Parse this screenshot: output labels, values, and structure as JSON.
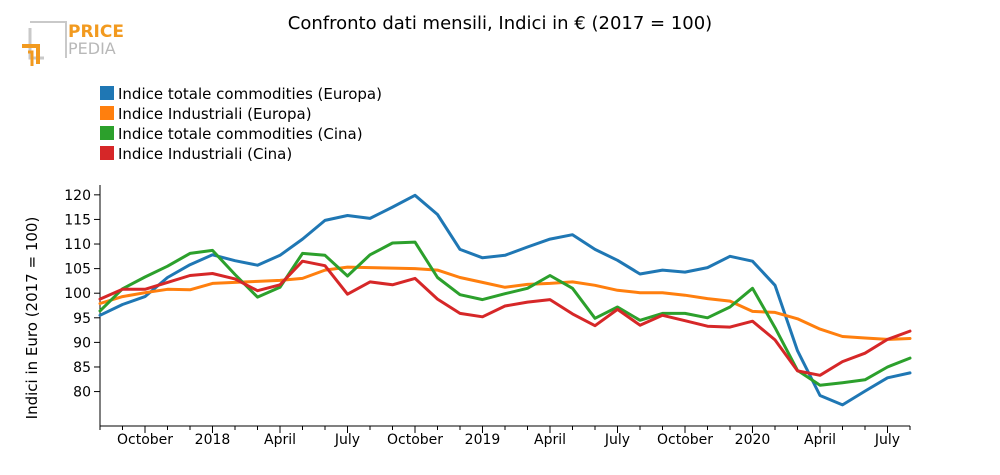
{
  "logo": {
    "line1": "PRICE",
    "line2": "PEDIA"
  },
  "chart_data": {
    "type": "line",
    "title": "Confronto dati mensili, Indici in € (2017 = 100)",
    "xlabel": "",
    "ylabel": "Indici in Euro (2017 = 100)",
    "ylim": [
      73,
      122
    ],
    "yticks": [
      80,
      85,
      90,
      95,
      100,
      105,
      110,
      115,
      120
    ],
    "x_months": [
      "2017-08",
      "2017-09",
      "2017-10",
      "2017-11",
      "2017-12",
      "2018-01",
      "2018-02",
      "2018-03",
      "2018-04",
      "2018-05",
      "2018-06",
      "2018-07",
      "2018-08",
      "2018-09",
      "2018-10",
      "2018-11",
      "2018-12",
      "2019-01",
      "2019-02",
      "2019-03",
      "2019-04",
      "2019-05",
      "2019-06",
      "2019-07",
      "2019-08",
      "2019-09",
      "2019-10",
      "2019-11",
      "2019-12",
      "2020-01",
      "2020-02",
      "2020-03",
      "2020-04",
      "2020-05",
      "2020-06",
      "2020-07",
      "2020-08"
    ],
    "xticks": [
      {
        "index": 2,
        "label": "October"
      },
      {
        "index": 5,
        "label": "2018"
      },
      {
        "index": 8,
        "label": "April"
      },
      {
        "index": 11,
        "label": "July"
      },
      {
        "index": 14,
        "label": "October"
      },
      {
        "index": 17,
        "label": "2019"
      },
      {
        "index": 20,
        "label": "April"
      },
      {
        "index": 23,
        "label": "July"
      },
      {
        "index": 26,
        "label": "October"
      },
      {
        "index": 29,
        "label": "2020"
      },
      {
        "index": 32,
        "label": "April"
      },
      {
        "index": 35,
        "label": "July"
      }
    ],
    "series": [
      {
        "name": "Indice totale commodities (Europa)",
        "color": "#1f77b4",
        "values": [
          95.5,
          97.7,
          99.3,
          103.2,
          105.8,
          107.8,
          106.6,
          105.7,
          107.7,
          111.0,
          114.8,
          115.8,
          115.2,
          117.5,
          119.9,
          116.0,
          108.9,
          107.2,
          107.7,
          109.4,
          111.0,
          111.9,
          108.9,
          106.7,
          103.9,
          104.7,
          104.3,
          105.2,
          107.5,
          106.5,
          101.6,
          88.3,
          79.2,
          77.3,
          80.1,
          82.8,
          83.8
        ]
      },
      {
        "name": "Indice Industriali (Europa)",
        "color": "#ff7f0e",
        "values": [
          97.9,
          99.3,
          100.1,
          100.8,
          100.7,
          102.0,
          102.2,
          102.4,
          102.6,
          103.0,
          104.7,
          105.3,
          105.2,
          105.1,
          105.0,
          104.7,
          103.2,
          102.2,
          101.2,
          101.8,
          102.0,
          102.3,
          101.6,
          100.6,
          100.1,
          100.1,
          99.6,
          98.9,
          98.4,
          96.3,
          96.1,
          94.8,
          92.7,
          91.2,
          90.9,
          90.6,
          90.8
        ]
      },
      {
        "name": "Indice totale commodities (Cina)",
        "color": "#2ca02c",
        "values": [
          96.4,
          100.9,
          103.3,
          105.5,
          108.1,
          108.7,
          103.8,
          99.2,
          101.2,
          108.1,
          107.7,
          103.5,
          107.8,
          110.2,
          110.4,
          103.2,
          99.7,
          98.7,
          99.9,
          101.0,
          103.6,
          101.0,
          94.9,
          97.2,
          94.5,
          95.9,
          95.9,
          95.0,
          97.2,
          101.0,
          93.0,
          84.3,
          81.3,
          81.8,
          82.4,
          85.0,
          86.8
        ]
      },
      {
        "name": "Indice Industriali (Cina)",
        "color": "#d62728",
        "values": [
          98.8,
          100.8,
          100.8,
          102.2,
          103.6,
          104.0,
          102.9,
          100.5,
          101.7,
          106.5,
          105.6,
          99.8,
          102.3,
          101.7,
          103.0,
          98.8,
          95.9,
          95.2,
          97.4,
          98.2,
          98.7,
          95.8,
          93.4,
          96.7,
          93.5,
          95.5,
          94.4,
          93.3,
          93.1,
          94.3,
          90.5,
          84.2,
          83.3,
          86.1,
          87.8,
          90.6,
          92.3
        ]
      }
    ]
  }
}
